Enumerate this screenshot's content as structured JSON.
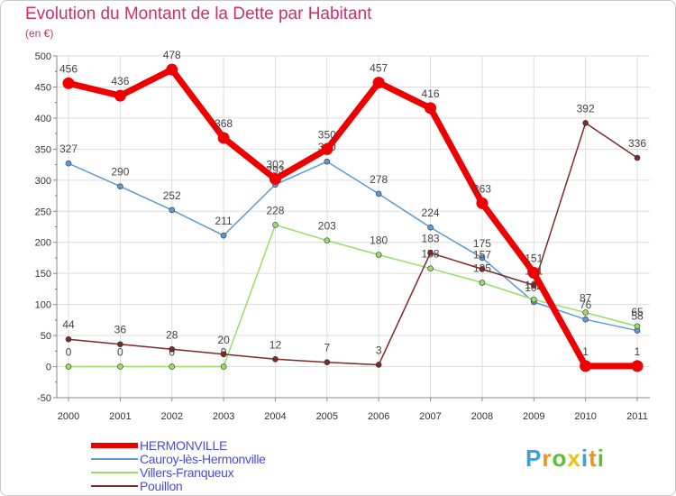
{
  "title": "Evolution du Montant de la Dette par Habitant",
  "subtitle": "(en €)",
  "brand": {
    "text": "Proxiti",
    "letters": [
      "P",
      "r",
      "o",
      "x",
      "i",
      "t",
      "i"
    ],
    "colors": [
      "#3aa0e0",
      "#e8932a",
      "#5cbf3a",
      "#e8c21a",
      "#3aa0e0",
      "#e8932a",
      "#5cbf3a"
    ]
  },
  "chart_data": {
    "type": "line",
    "x": [
      "2000",
      "2001",
      "2002",
      "2003",
      "2004",
      "2005",
      "2006",
      "2007",
      "2008",
      "2009",
      "2010",
      "2011"
    ],
    "ylim": [
      -50,
      500
    ],
    "yticks": [
      -50,
      0,
      50,
      100,
      150,
      200,
      250,
      300,
      350,
      400,
      450,
      500
    ],
    "grid": true,
    "legend": "bottom-left",
    "series": [
      {
        "name": "Cauroy-lès-Hermonville",
        "color": "#5b9bd5",
        "values": [
          327,
          290,
          252,
          211,
          293,
          330,
          278,
          224,
          175,
          104,
          76,
          58
        ],
        "labels": [
          "327",
          "290",
          "252",
          "211",
          "293",
          "330",
          "278",
          "224",
          "175",
          "104",
          "76",
          "58"
        ]
      },
      {
        "name": "Villers-Franqueux",
        "color": "#99dd66",
        "values": [
          0,
          0,
          0,
          0,
          228,
          203,
          180,
          158,
          135,
          108,
          87,
          65
        ],
        "labels": [
          "0",
          "0",
          "0",
          "0",
          "228",
          "203",
          "180",
          "158",
          "135",
          "108",
          "87",
          "65"
        ]
      },
      {
        "name": "Pouillon",
        "color": "#7b2a2a",
        "values": [
          44,
          36,
          28,
          20,
          12,
          7,
          3,
          183,
          157,
          131,
          392,
          336
        ],
        "labels": [
          "44",
          "36",
          "28",
          "20",
          "12",
          "7",
          "3",
          "183",
          "157",
          "131",
          "392",
          "336"
        ]
      },
      {
        "name": "HERMONVILLE",
        "color": "#ee0000",
        "values": [
          456,
          436,
          478,
          368,
          302,
          350,
          457,
          416,
          263,
          151,
          1,
          1
        ],
        "labels": [
          "456",
          "436",
          "478",
          "368",
          "302",
          "350",
          "457",
          "416",
          "263",
          "151",
          "1",
          "1"
        ]
      }
    ]
  },
  "legend_items": [
    {
      "label": "HERMONVILLE",
      "color": "#ee0000"
    },
    {
      "label": "Cauroy-lès-Hermonville",
      "color": "#5b9bd5"
    },
    {
      "label": "Villers-Franqueux",
      "color": "#99dd66"
    },
    {
      "label": "Pouillon",
      "color": "#7b2a2a"
    }
  ]
}
